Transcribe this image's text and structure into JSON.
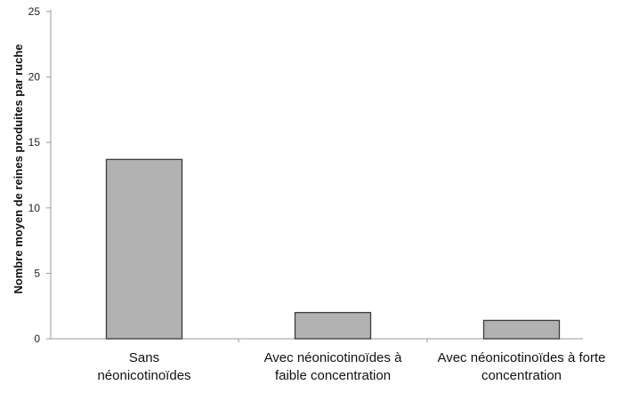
{
  "chart_data": {
    "type": "bar",
    "ylabel": "Nombre moyen de reines produites par ruche",
    "xlabel": "",
    "ylim": [
      0,
      25
    ],
    "yticks": [
      0,
      5,
      10,
      15,
      20,
      25
    ],
    "categories": [
      [
        "Sans",
        "néonicotinoïdes"
      ],
      [
        "Avec néonicotinoïdes à",
        "faible concentration"
      ],
      [
        "Avec néonicotinoïdes à forte",
        "concentration"
      ]
    ],
    "values": [
      13.7,
      2.0,
      1.4
    ],
    "grid": false,
    "legend": "none",
    "colors": {
      "bar_fill": "#b2b2b2",
      "bar_stroke": "#3a3a3a",
      "axis": "#9a9a9a"
    }
  }
}
